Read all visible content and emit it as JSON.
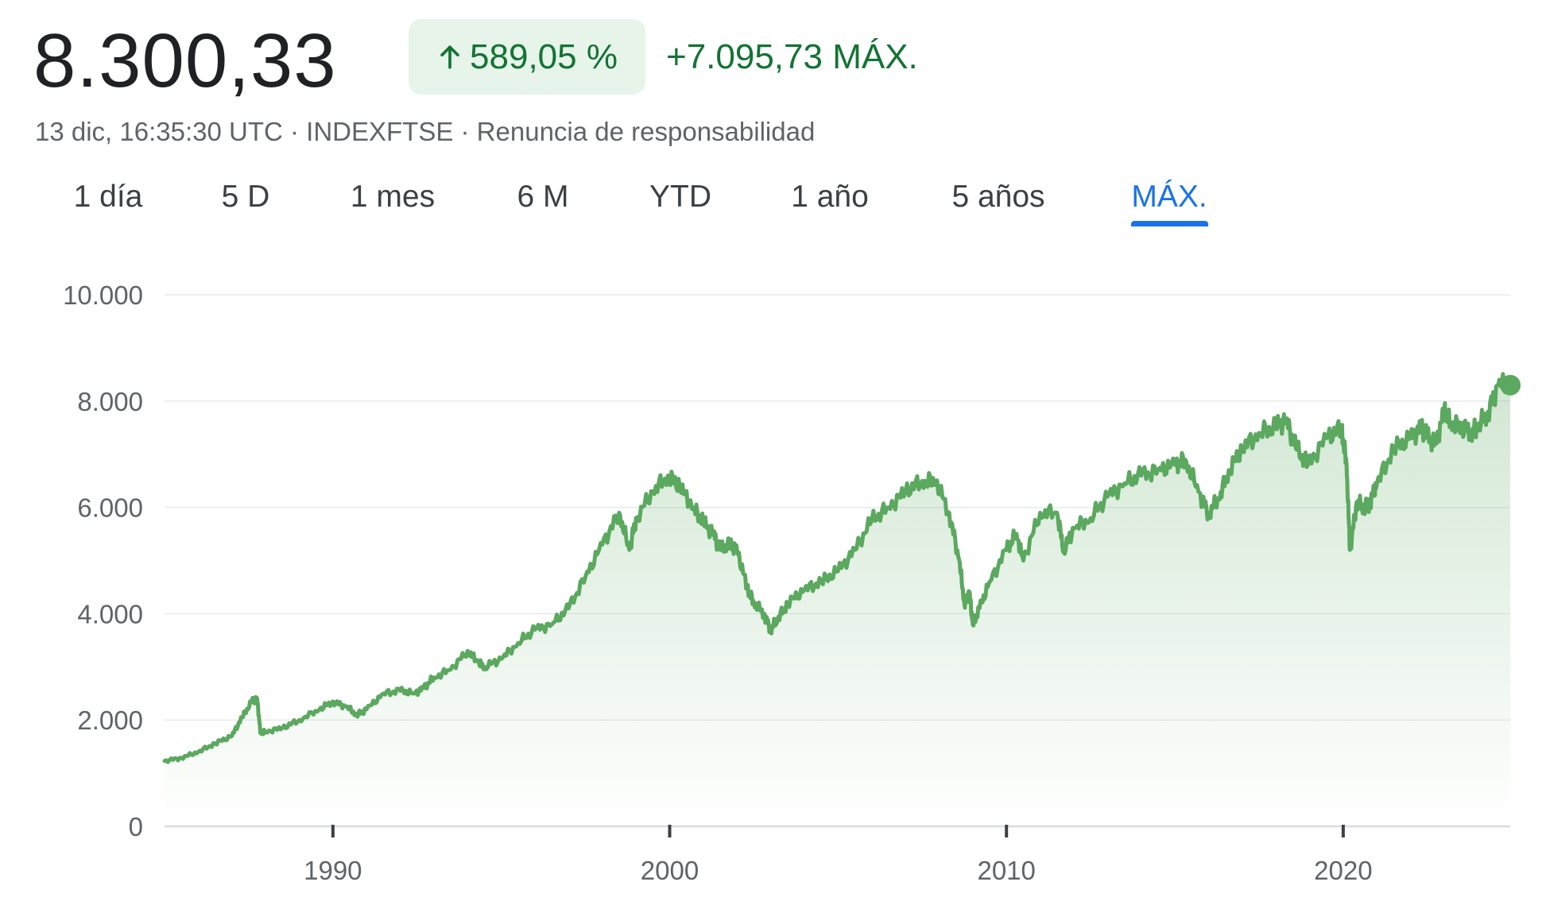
{
  "header": {
    "price": "8.300,33",
    "change_percent": "589,05 %",
    "change_abs": "+7.095,73 MÁX.",
    "meta": "13 dic, 16:35:30 UTC · INDEXFTSE · Renuncia de responsabilidad",
    "arrow_icon": "arrow-up-icon"
  },
  "tabs": [
    {
      "label": "1 día",
      "active": false
    },
    {
      "label": "5 D",
      "active": false
    },
    {
      "label": "1 mes",
      "active": false
    },
    {
      "label": "6 M",
      "active": false
    },
    {
      "label": "YTD",
      "active": false
    },
    {
      "label": "1 año",
      "active": false
    },
    {
      "label": "5 años",
      "active": false
    },
    {
      "label": "MÁX.",
      "active": true
    }
  ],
  "colors": {
    "line": "#5ba85f",
    "positive_text": "#137333",
    "positive_bg": "#e6f4ea",
    "active_tab": "#1a73e8"
  },
  "chart_data": {
    "type": "area",
    "title": "",
    "xlabel": "",
    "ylabel": "",
    "ylim": [
      0,
      10000
    ],
    "xlim": [
      1985.0,
      2024.96
    ],
    "y_ticks": [
      "10.000",
      "8.000",
      "6.000",
      "4.000",
      "2.000",
      "0"
    ],
    "y_tick_values": [
      10000,
      8000,
      6000,
      4000,
      2000,
      0
    ],
    "x_ticks": [
      "1990",
      "2000",
      "2010",
      "2020"
    ],
    "x_tick_values": [
      1990,
      2000,
      2010,
      2020
    ],
    "grid": true,
    "end_marker": true,
    "series": [
      {
        "x": [
          1985.0,
          1985.5,
          1986.0,
          1986.5,
          1987.0,
          1987.3,
          1987.6,
          1987.75,
          1987.85,
          1988.0,
          1988.5,
          1989.0,
          1989.6,
          1990.0,
          1990.4,
          1990.7,
          1991.0,
          1991.5,
          1992.0,
          1992.4,
          1992.7,
          1993.0,
          1993.5,
          1994.0,
          1994.3,
          1994.5,
          1995.0,
          1995.5,
          1996.0,
          1996.5,
          1997.0,
          1997.5,
          1998.0,
          1998.5,
          1998.8,
          1999.0,
          1999.5,
          1999.95,
          2000.3,
          2000.7,
          2001.0,
          2001.3,
          2001.5,
          2001.8,
          2002.0,
          2002.3,
          2002.5,
          2002.8,
          2003.0,
          2003.2,
          2003.5,
          2004.0,
          2004.5,
          2005.0,
          2005.5,
          2006.0,
          2006.5,
          2007.0,
          2007.5,
          2007.9,
          2008.3,
          2008.6,
          2008.75,
          2008.9,
          2009.0,
          2009.2,
          2009.5,
          2010.0,
          2010.3,
          2010.5,
          2011.0,
          2011.5,
          2011.7,
          2012.0,
          2012.5,
          2013.0,
          2013.5,
          2014.0,
          2014.5,
          2015.0,
          2015.3,
          2015.7,
          2016.0,
          2016.3,
          2016.6,
          2017.0,
          2017.5,
          2018.0,
          2018.3,
          2018.6,
          2018.95,
          2019.5,
          2019.95,
          2020.1,
          2020.2,
          2020.4,
          2020.6,
          2020.8,
          2021.0,
          2021.5,
          2022.0,
          2022.3,
          2022.5,
          2022.75,
          2023.0,
          2023.2,
          2023.5,
          2023.8,
          2024.0,
          2024.3,
          2024.6,
          2024.96
        ],
        "y": [
          1230,
          1290,
          1400,
          1560,
          1700,
          2050,
          2350,
          2400,
          1750,
          1780,
          1850,
          2000,
          2200,
          2350,
          2250,
          2100,
          2200,
          2500,
          2550,
          2500,
          2600,
          2800,
          2950,
          3300,
          3100,
          3000,
          3150,
          3450,
          3700,
          3800,
          4100,
          4700,
          5300,
          5900,
          5200,
          5800,
          6300,
          6600,
          6400,
          6000,
          5700,
          5500,
          5200,
          5300,
          5200,
          4500,
          4200,
          4000,
          3700,
          3900,
          4200,
          4450,
          4600,
          4800,
          5200,
          5750,
          6000,
          6300,
          6500,
          6500,
          5900,
          5000,
          4200,
          4400,
          3800,
          4100,
          4600,
          5200,
          5500,
          5000,
          5900,
          5900,
          5200,
          5600,
          5800,
          6200,
          6450,
          6600,
          6700,
          6800,
          6900,
          6300,
          5900,
          6150,
          6700,
          7100,
          7400,
          7500,
          7650,
          7100,
          6800,
          7300,
          7500,
          6800,
          5200,
          6100,
          6000,
          6100,
          6450,
          7100,
          7300,
          7500,
          7300,
          7200,
          7800,
          7600,
          7500,
          7450,
          7500,
          7800,
          8300,
          8300
        ]
      }
    ]
  }
}
